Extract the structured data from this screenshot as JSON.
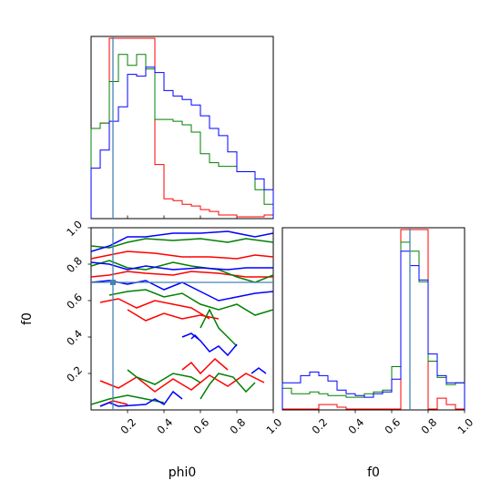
{
  "chart_data": {
    "type": "corner",
    "parameters": [
      "phi0",
      "f0"
    ],
    "truths": {
      "phi0": 0.12,
      "f0": 0.7
    },
    "colors": {
      "red": "#ff0000",
      "green": "#008000",
      "blue": "#0000ff",
      "truth": "#4682b4"
    },
    "panels": {
      "phi0_hist": {
        "type": "histogram",
        "xlim": [
          0,
          1
        ],
        "bin_edges": [
          0,
          0.05,
          0.1,
          0.15,
          0.2,
          0.25,
          0.3,
          0.35,
          0.4,
          0.45,
          0.5,
          0.55,
          0.6,
          0.65,
          0.7,
          0.75,
          0.8,
          0.85,
          0.9,
          0.95,
          1.0
        ],
        "series": [
          {
            "color": "red",
            "counts": [
              0.5,
              0.53,
              1.0,
              1.0,
              1.0,
              1.0,
              1.0,
              0.3,
              0.11,
              0.1,
              0.08,
              0.07,
              0.05,
              0.04,
              0.02,
              0.02,
              0.01,
              0.01,
              0.01,
              0.02
            ]
          },
          {
            "color": "green",
            "counts": [
              0.5,
              0.53,
              0.76,
              0.91,
              0.85,
              0.91,
              0.83,
              0.55,
              0.55,
              0.54,
              0.52,
              0.48,
              0.36,
              0.31,
              0.29,
              0.29,
              0.26,
              0.26,
              0.16,
              0.08
            ]
          },
          {
            "color": "blue",
            "counts": [
              0.28,
              0.38,
              0.54,
              0.62,
              0.8,
              0.79,
              0.84,
              0.81,
              0.71,
              0.68,
              0.66,
              0.63,
              0.57,
              0.5,
              0.46,
              0.37,
              0.26,
              0.26,
              0.22,
              0.16
            ]
          }
        ]
      },
      "f0_hist": {
        "type": "histogram",
        "xlim": [
          0,
          1
        ],
        "xticks": [
          "0.2",
          "0.4",
          "0.6",
          "0.8",
          "1.0"
        ],
        "xlabel": "f0",
        "bin_edges": [
          0,
          0.05,
          0.1,
          0.15,
          0.2,
          0.25,
          0.3,
          0.35,
          0.4,
          0.45,
          0.5,
          0.55,
          0.6,
          0.65,
          0.7,
          0.75,
          0.8,
          0.85,
          0.9,
          0.95,
          1.0
        ],
        "series": [
          {
            "color": "red",
            "counts": [
              0.005,
              0.005,
              0.005,
              0.005,
              0.03,
              0.03,
              0.015,
              0.005,
              0.005,
              0.005,
              0.005,
              0.005,
              0.005,
              1.0,
              1.0,
              1.0,
              0.005,
              0.065,
              0.03,
              0.005
            ]
          },
          {
            "color": "green",
            "counts": [
              0.12,
              0.09,
              0.09,
              0.1,
              0.09,
              0.08,
              0.08,
              0.07,
              0.07,
              0.09,
              0.1,
              0.11,
              0.24,
              0.93,
              0.88,
              0.71,
              0.27,
              0.18,
              0.14,
              0.15
            ]
          },
          {
            "color": "blue",
            "counts": [
              0.15,
              0.15,
              0.19,
              0.21,
              0.19,
              0.16,
              0.11,
              0.09,
              0.08,
              0.07,
              0.09,
              0.1,
              0.17,
              0.88,
              0.8,
              0.72,
              0.31,
              0.19,
              0.15,
              0.15
            ]
          }
        ]
      },
      "joint": {
        "type": "contour",
        "xlim": [
          0,
          1
        ],
        "ylim": [
          0,
          1
        ],
        "xticks": [
          "0.2",
          "0.4",
          "0.6",
          "0.8",
          "1.0"
        ],
        "yticks": [
          "0.2",
          "0.4",
          "0.6",
          "0.8",
          "1.0"
        ],
        "xlabel": "phi0",
        "ylabel": "f0",
        "lines": [
          {
            "color": "red",
            "points": [
              [
                0,
                0.83
              ],
              [
                0.1,
                0.85
              ],
              [
                0.2,
                0.87
              ],
              [
                0.35,
                0.86
              ],
              [
                0.5,
                0.84
              ],
              [
                0.65,
                0.84
              ],
              [
                0.8,
                0.83
              ],
              [
                0.9,
                0.85
              ],
              [
                1.0,
                0.84
              ]
            ]
          },
          {
            "color": "red",
            "points": [
              [
                0,
                0.73
              ],
              [
                0.1,
                0.74
              ],
              [
                0.2,
                0.76
              ],
              [
                0.3,
                0.75
              ],
              [
                0.45,
                0.74
              ],
              [
                0.55,
                0.76
              ],
              [
                0.7,
                0.75
              ],
              [
                0.85,
                0.73
              ],
              [
                1.0,
                0.73
              ]
            ]
          },
          {
            "color": "red",
            "points": [
              [
                0.05,
                0.59
              ],
              [
                0.15,
                0.61
              ],
              [
                0.25,
                0.56
              ],
              [
                0.35,
                0.6
              ],
              [
                0.45,
                0.58
              ],
              [
                0.55,
                0.56
              ],
              [
                0.6,
                0.53
              ],
              [
                0.65,
                0.5
              ]
            ]
          },
          {
            "color": "red",
            "points": [
              [
                0.2,
                0.55
              ],
              [
                0.3,
                0.49
              ],
              [
                0.4,
                0.53
              ],
              [
                0.5,
                0.5
              ],
              [
                0.6,
                0.52
              ],
              [
                0.7,
                0.5
              ]
            ]
          },
          {
            "color": "red",
            "points": [
              [
                0.05,
                0.16
              ],
              [
                0.15,
                0.12
              ],
              [
                0.25,
                0.18
              ],
              [
                0.35,
                0.1
              ],
              [
                0.45,
                0.17
              ],
              [
                0.55,
                0.11
              ],
              [
                0.65,
                0.19
              ],
              [
                0.75,
                0.13
              ],
              [
                0.85,
                0.2
              ],
              [
                0.95,
                0.15
              ]
            ]
          },
          {
            "color": "red",
            "points": [
              [
                0.5,
                0.22
              ],
              [
                0.55,
                0.26
              ],
              [
                0.6,
                0.2
              ],
              [
                0.68,
                0.28
              ],
              [
                0.75,
                0.22
              ]
            ]
          },
          {
            "color": "red",
            "points": [
              [
                0.05,
                0.02
              ],
              [
                0.12,
                0.05
              ],
              [
                0.2,
                0.03
              ]
            ]
          },
          {
            "color": "green",
            "points": [
              [
                0,
                0.9
              ],
              [
                0.1,
                0.89
              ],
              [
                0.2,
                0.92
              ],
              [
                0.3,
                0.94
              ],
              [
                0.45,
                0.93
              ],
              [
                0.6,
                0.94
              ],
              [
                0.75,
                0.92
              ],
              [
                0.85,
                0.94
              ],
              [
                1.0,
                0.92
              ]
            ]
          },
          {
            "color": "green",
            "points": [
              [
                0,
                0.79
              ],
              [
                0.1,
                0.82
              ],
              [
                0.2,
                0.78
              ],
              [
                0.3,
                0.77
              ],
              [
                0.45,
                0.81
              ],
              [
                0.55,
                0.79
              ],
              [
                0.7,
                0.77
              ],
              [
                0.8,
                0.73
              ],
              [
                0.9,
                0.7
              ],
              [
                1.0,
                0.74
              ]
            ]
          },
          {
            "color": "green",
            "points": [
              [
                0.1,
                0.63
              ],
              [
                0.2,
                0.65
              ],
              [
                0.3,
                0.66
              ],
              [
                0.4,
                0.62
              ],
              [
                0.5,
                0.64
              ],
              [
                0.6,
                0.58
              ],
              [
                0.7,
                0.55
              ],
              [
                0.8,
                0.58
              ],
              [
                0.9,
                0.52
              ],
              [
                1.0,
                0.55
              ]
            ]
          },
          {
            "color": "green",
            "points": [
              [
                0.6,
                0.45
              ],
              [
                0.65,
                0.55
              ],
              [
                0.7,
                0.45
              ],
              [
                0.75,
                0.4
              ],
              [
                0.8,
                0.35
              ]
            ]
          },
          {
            "color": "green",
            "points": [
              [
                0.2,
                0.22
              ],
              [
                0.25,
                0.18
              ],
              [
                0.35,
                0.14
              ],
              [
                0.45,
                0.2
              ],
              [
                0.55,
                0.18
              ],
              [
                0.6,
                0.15
              ]
            ]
          },
          {
            "color": "green",
            "points": [
              [
                0.6,
                0.06
              ],
              [
                0.65,
                0.14
              ],
              [
                0.7,
                0.2
              ],
              [
                0.78,
                0.18
              ],
              [
                0.85,
                0.1
              ],
              [
                0.9,
                0.15
              ]
            ]
          },
          {
            "color": "green",
            "points": [
              [
                0,
                0.03
              ],
              [
                0.1,
                0.06
              ],
              [
                0.2,
                0.08
              ],
              [
                0.3,
                0.06
              ],
              [
                0.4,
                0.04
              ]
            ]
          },
          {
            "color": "blue",
            "points": [
              [
                0,
                0.87
              ],
              [
                0.1,
                0.9
              ],
              [
                0.2,
                0.95
              ],
              [
                0.3,
                0.95
              ],
              [
                0.45,
                0.97
              ],
              [
                0.6,
                0.97
              ],
              [
                0.75,
                0.98
              ],
              [
                0.9,
                0.95
              ],
              [
                1.0,
                0.97
              ]
            ]
          },
          {
            "color": "blue",
            "points": [
              [
                0,
                0.81
              ],
              [
                0.1,
                0.8
              ],
              [
                0.2,
                0.77
              ],
              [
                0.3,
                0.79
              ],
              [
                0.45,
                0.77
              ],
              [
                0.6,
                0.78
              ],
              [
                0.75,
                0.77
              ],
              [
                0.85,
                0.78
              ],
              [
                1.0,
                0.78
              ]
            ]
          },
          {
            "color": "blue",
            "points": [
              [
                0,
                0.7
              ],
              [
                0.1,
                0.71
              ],
              [
                0.2,
                0.69
              ],
              [
                0.3,
                0.71
              ],
              [
                0.4,
                0.66
              ],
              [
                0.5,
                0.7
              ],
              [
                0.6,
                0.65
              ],
              [
                0.7,
                0.6
              ],
              [
                0.8,
                0.62
              ],
              [
                0.9,
                0.64
              ],
              [
                1.0,
                0.65
              ]
            ]
          },
          {
            "color": "blue",
            "points": [
              [
                0.5,
                0.4
              ],
              [
                0.55,
                0.42
              ],
              [
                0.6,
                0.38
              ],
              [
                0.65,
                0.32
              ],
              [
                0.7,
                0.35
              ],
              [
                0.75,
                0.3
              ],
              [
                0.8,
                0.36
              ]
            ]
          },
          {
            "color": "blue",
            "points": [
              [
                0.05,
                0.02
              ],
              [
                0.1,
                0.04
              ],
              [
                0.15,
                0.02
              ],
              [
                0.3,
                0.03
              ],
              [
                0.35,
                0.06
              ],
              [
                0.4,
                0.03
              ],
              [
                0.45,
                0.1
              ],
              [
                0.5,
                0.06
              ]
            ]
          },
          {
            "color": "blue",
            "points": [
              [
                0.88,
                0.2
              ],
              [
                0.92,
                0.23
              ],
              [
                0.96,
                0.2
              ]
            ]
          },
          {
            "color": "blue",
            "points": [
              [
                0.55,
                0.39
              ],
              [
                0.57,
                0.41
              ],
              [
                0.59,
                0.39
              ]
            ]
          }
        ]
      }
    }
  }
}
